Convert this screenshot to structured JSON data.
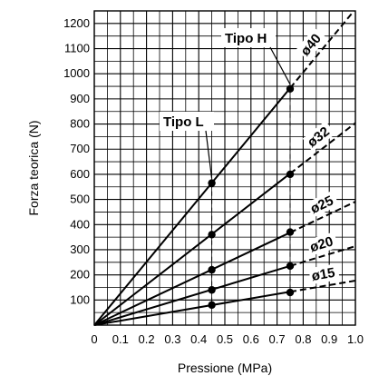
{
  "chart_data": {
    "type": "line",
    "xlabel": "Pressione (MPa)",
    "ylabel": "Forza teorica (N)",
    "xlim": [
      0,
      1.0
    ],
    "ylim": [
      0,
      1250
    ],
    "x_ticks": [
      "0",
      "0.1",
      "0.2",
      "0.3",
      "0.4",
      "0.5",
      "0.6",
      "0.7",
      "0.8",
      "0.9",
      "1.0"
    ],
    "y_ticks": [
      "100",
      "200",
      "300",
      "400",
      "500",
      "600",
      "700",
      "800",
      "900",
      "1000",
      "1100",
      "1200"
    ],
    "grid": true,
    "series": [
      {
        "name": "ø40",
        "solid_to": 0.75,
        "x": [
          0,
          1.0
        ],
        "y": [
          0,
          1257
        ]
      },
      {
        "name": "ø32",
        "solid_to": 0.75,
        "x": [
          0,
          1.0
        ],
        "y": [
          0,
          804
        ]
      },
      {
        "name": "ø25",
        "solid_to": 0.75,
        "x": [
          0,
          1.0
        ],
        "y": [
          0,
          491
        ]
      },
      {
        "name": "ø20",
        "solid_to": 0.75,
        "x": [
          0,
          1.0
        ],
        "y": [
          0,
          314
        ]
      },
      {
        "name": "ø15",
        "solid_to": 0.75,
        "x": [
          0,
          1.0
        ],
        "y": [
          0,
          177
        ]
      }
    ],
    "markers": {
      "tipo_l": {
        "x": 0.45,
        "y": [
          565,
          360,
          220,
          140,
          80
        ]
      },
      "tipo_h": {
        "x": 0.75,
        "y": [
          940,
          600,
          370,
          235,
          130
        ]
      }
    },
    "annotations": [
      "Tipo H",
      "Tipo L"
    ]
  }
}
